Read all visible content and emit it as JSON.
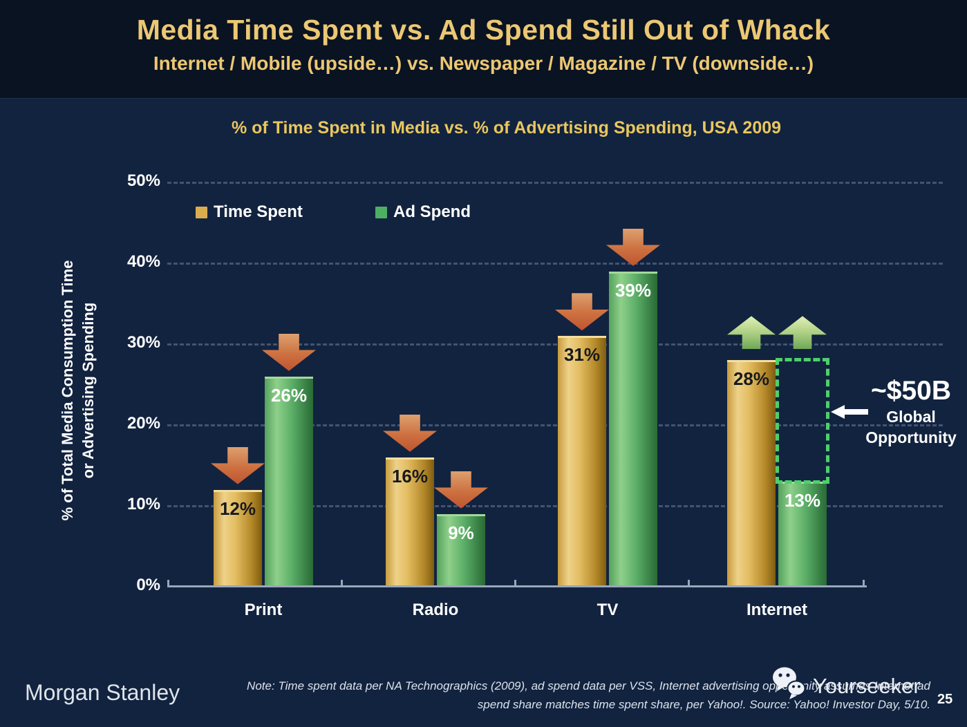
{
  "slide": {
    "title": "Media Time Spent vs. Ad Spend Still Out of Whack",
    "subtitle": "Internet / Mobile (upside…) vs. Newspaper / Magazine / TV (downside…)"
  },
  "chart_data": {
    "type": "bar",
    "title": "% of Time Spent in Media vs. % of Advertising Spending, USA 2009",
    "ylabel_line1": "% of Total Media Consumption Time",
    "ylabel_line2": "or Advertising Spending",
    "categories": [
      "Print",
      "Radio",
      "TV",
      "Internet"
    ],
    "series": [
      {
        "name": "Time Spent",
        "color": "#d9ad4e",
        "values": [
          12,
          16,
          31,
          28
        ],
        "value_label_color": "dark"
      },
      {
        "name": "Ad Spend",
        "color": "#4caf63",
        "values": [
          26,
          9,
          39,
          13
        ],
        "value_label_color": "light"
      }
    ],
    "value_labels": [
      [
        "12%",
        "26%"
      ],
      [
        "16%",
        "9%"
      ],
      [
        "31%",
        "39%"
      ],
      [
        "28%",
        "13%"
      ]
    ],
    "trend_arrows": [
      [
        "down",
        "down"
      ],
      [
        "down",
        "down"
      ],
      [
        "down",
        "down"
      ],
      [
        "up",
        "up"
      ]
    ],
    "yticks": [
      "0%",
      "10%",
      "20%",
      "30%",
      "40%",
      "50%"
    ],
    "ylim": [
      0,
      50
    ],
    "grid": "dotted horizontal gridlines every 10%",
    "legend_position": "top-left inside plot"
  },
  "annotation": {
    "headline": "~$50B",
    "line1": "Global",
    "line2": "Opportunity",
    "arrow_icon": "left-arrow",
    "target_category": "Internet",
    "box_color": "#4ed06c"
  },
  "footer": {
    "brand": "Morgan Stanley",
    "note_line1": "Note: Time spent data per NA Technographics (2009), ad spend data per VSS, Internet advertising opportunity assumes Internet ad",
    "note_line2": "spend share matches time spent share, per Yahoo!. Source: Yahoo! Investor Day, 5/10.",
    "watermark": "Yourseeker",
    "watermark_icon": "wechat-icon",
    "page_number": "25"
  },
  "colors": {
    "background": "#12233f",
    "header_background": "#0a1322",
    "title_gold": "#ecc873",
    "bar_gold": "#d9ad4e",
    "bar_green": "#4caf63",
    "arrow_down_red": "#cd7040",
    "arrow_up_green": "#b4d489",
    "opportunity_box_green": "#4ed06c",
    "axis_gray": "#9aa6ba"
  }
}
